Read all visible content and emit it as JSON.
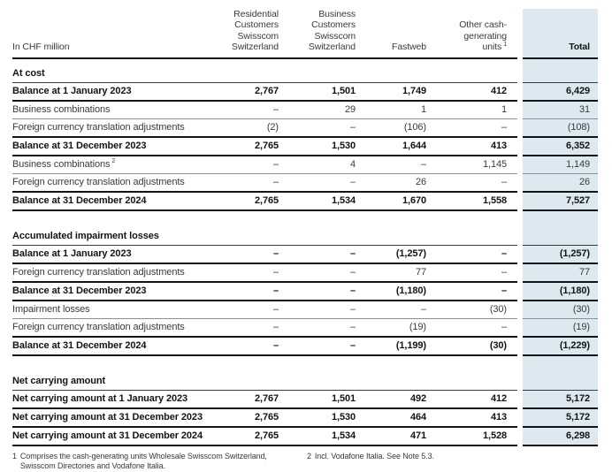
{
  "meta": {
    "unit_label": "In CHF million"
  },
  "columns": [
    {
      "label": "Residential\nCustomers\nSwisscom\nSwitzerland"
    },
    {
      "label": "Business\nCustomers\nSwisscom\nSwitzerland"
    },
    {
      "label": "Fastweb"
    },
    {
      "label": "Other cash-\ngenerating\nunits",
      "sup": "1"
    },
    {
      "label": "Total"
    }
  ],
  "sections": [
    {
      "title": "At cost",
      "rows": [
        {
          "label": "Balance at 1 January 2023",
          "bold": true,
          "values": [
            "2,767",
            "1,501",
            "1,749",
            "412",
            "6,429"
          ]
        },
        {
          "label": "Business combinations",
          "bold": false,
          "values": [
            "–",
            "29",
            "1",
            "1",
            "31"
          ]
        },
        {
          "label": "Foreign currency translation adjustments",
          "bold": false,
          "values": [
            "(2)",
            "–",
            "(106)",
            "–",
            "(108)"
          ]
        },
        {
          "label": "Balance at 31 December 2023",
          "bold": true,
          "values": [
            "2,765",
            "1,530",
            "1,644",
            "413",
            "6,352"
          ]
        },
        {
          "label": "Business combinations",
          "sup": "2",
          "bold": false,
          "values": [
            "–",
            "4",
            "–",
            "1,145",
            "1,149"
          ]
        },
        {
          "label": "Foreign currency translation adjustments",
          "bold": false,
          "values": [
            "–",
            "–",
            "26",
            "–",
            "26"
          ]
        },
        {
          "label": "Balance at 31 December 2024",
          "bold": true,
          "values": [
            "2,765",
            "1,534",
            "1,670",
            "1,558",
            "7,527"
          ]
        }
      ]
    },
    {
      "title": "Accumulated impairment losses",
      "rows": [
        {
          "label": "Balance at 1 January 2023",
          "bold": true,
          "values": [
            "–",
            "–",
            "(1,257)",
            "–",
            "(1,257)"
          ]
        },
        {
          "label": "Foreign currency translation adjustments",
          "bold": false,
          "values": [
            "–",
            "–",
            "77",
            "–",
            "77"
          ]
        },
        {
          "label": "Balance at 31 December 2023",
          "bold": true,
          "values": [
            "–",
            "–",
            "(1,180)",
            "–",
            "(1,180)"
          ]
        },
        {
          "label": "Impairment losses",
          "bold": false,
          "values": [
            "–",
            "–",
            "–",
            "(30)",
            "(30)"
          ]
        },
        {
          "label": "Foreign currency translation adjustments",
          "bold": false,
          "values": [
            "–",
            "–",
            "(19)",
            "–",
            "(19)"
          ]
        },
        {
          "label": "Balance at 31 December 2024",
          "bold": true,
          "values": [
            "–",
            "–",
            "(1,199)",
            "(30)",
            "(1,229)"
          ]
        }
      ]
    },
    {
      "title": "Net carrying amount",
      "rows": [
        {
          "label": "Net carrying amount at 1 January 2023",
          "bold": true,
          "values": [
            "2,767",
            "1,501",
            "492",
            "412",
            "5,172"
          ]
        },
        {
          "label": "Net carrying amount at 31 December 2023",
          "bold": true,
          "values": [
            "2,765",
            "1,530",
            "464",
            "413",
            "5,172"
          ]
        },
        {
          "label": "Net carrying amount at 31 December 2024",
          "bold": true,
          "values": [
            "2,765",
            "1,534",
            "471",
            "1,528",
            "6,298"
          ]
        }
      ]
    }
  ],
  "footnotes": [
    {
      "marker": "1",
      "text": "Comprises the cash-generating units Wholesale Swisscom Switzerland, Swisscom Directories and Vodafone Italia."
    },
    {
      "marker": "2",
      "text": "Incl. Vodafone Italia. See Note 5.3."
    }
  ],
  "colors": {
    "total_band": "#dde9f0",
    "thick_rule": "#141414",
    "thin_rule": "#8f8f8f"
  }
}
